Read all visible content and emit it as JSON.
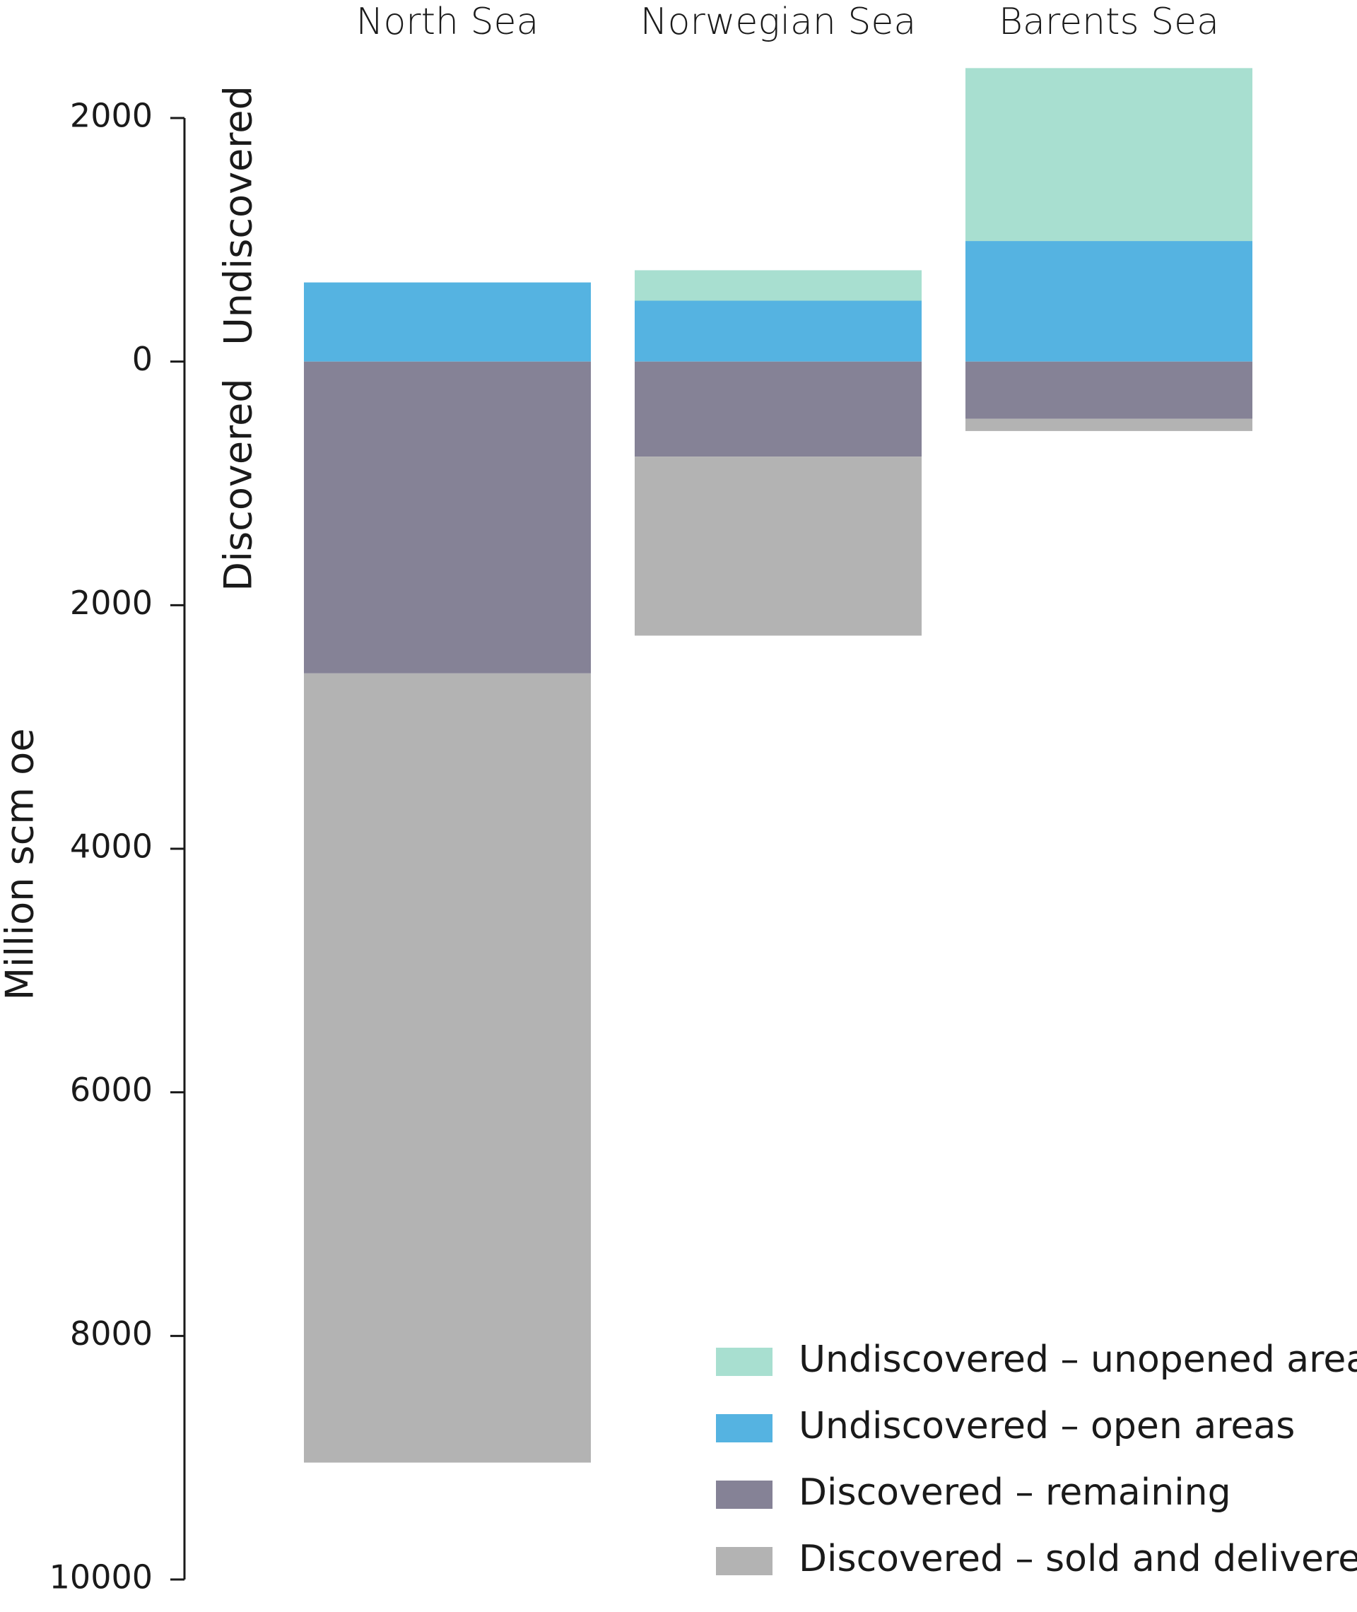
{
  "chart_data": {
    "type": "bar",
    "ylabel": "Million scm oe",
    "annotations": [
      "Undiscovered",
      "Discovered"
    ],
    "categories": [
      "North Sea",
      "Norwegian Sea",
      "Barents Sea"
    ],
    "series": [
      {
        "name": "Undiscovered – unopened areas",
        "color": "#a8dfd0",
        "values": [
          0,
          250,
          1420
        ]
      },
      {
        "name": "Undiscovered – open areas",
        "color": "#55b3e1",
        "values": [
          650,
          500,
          990
        ]
      },
      {
        "name": "Discovered – remaining",
        "color": "#858296",
        "values": [
          -2560,
          -780,
          -470
        ]
      },
      {
        "name": "Discovered – sold and delivered",
        "color": "#b3b3b3",
        "values": [
          -6480,
          -1470,
          -100
        ]
      }
    ],
    "ylim": [
      -10000,
      2000
    ],
    "yticks": [
      2000,
      0,
      {
        "value": -2000,
        "label": "2000"
      },
      {
        "value": -4000,
        "label": "4000"
      },
      {
        "value": -6000,
        "label": "6000"
      },
      {
        "value": -8000,
        "label": "8000"
      },
      {
        "value": -10000,
        "label": "10000"
      }
    ],
    "legend": "lower right"
  }
}
